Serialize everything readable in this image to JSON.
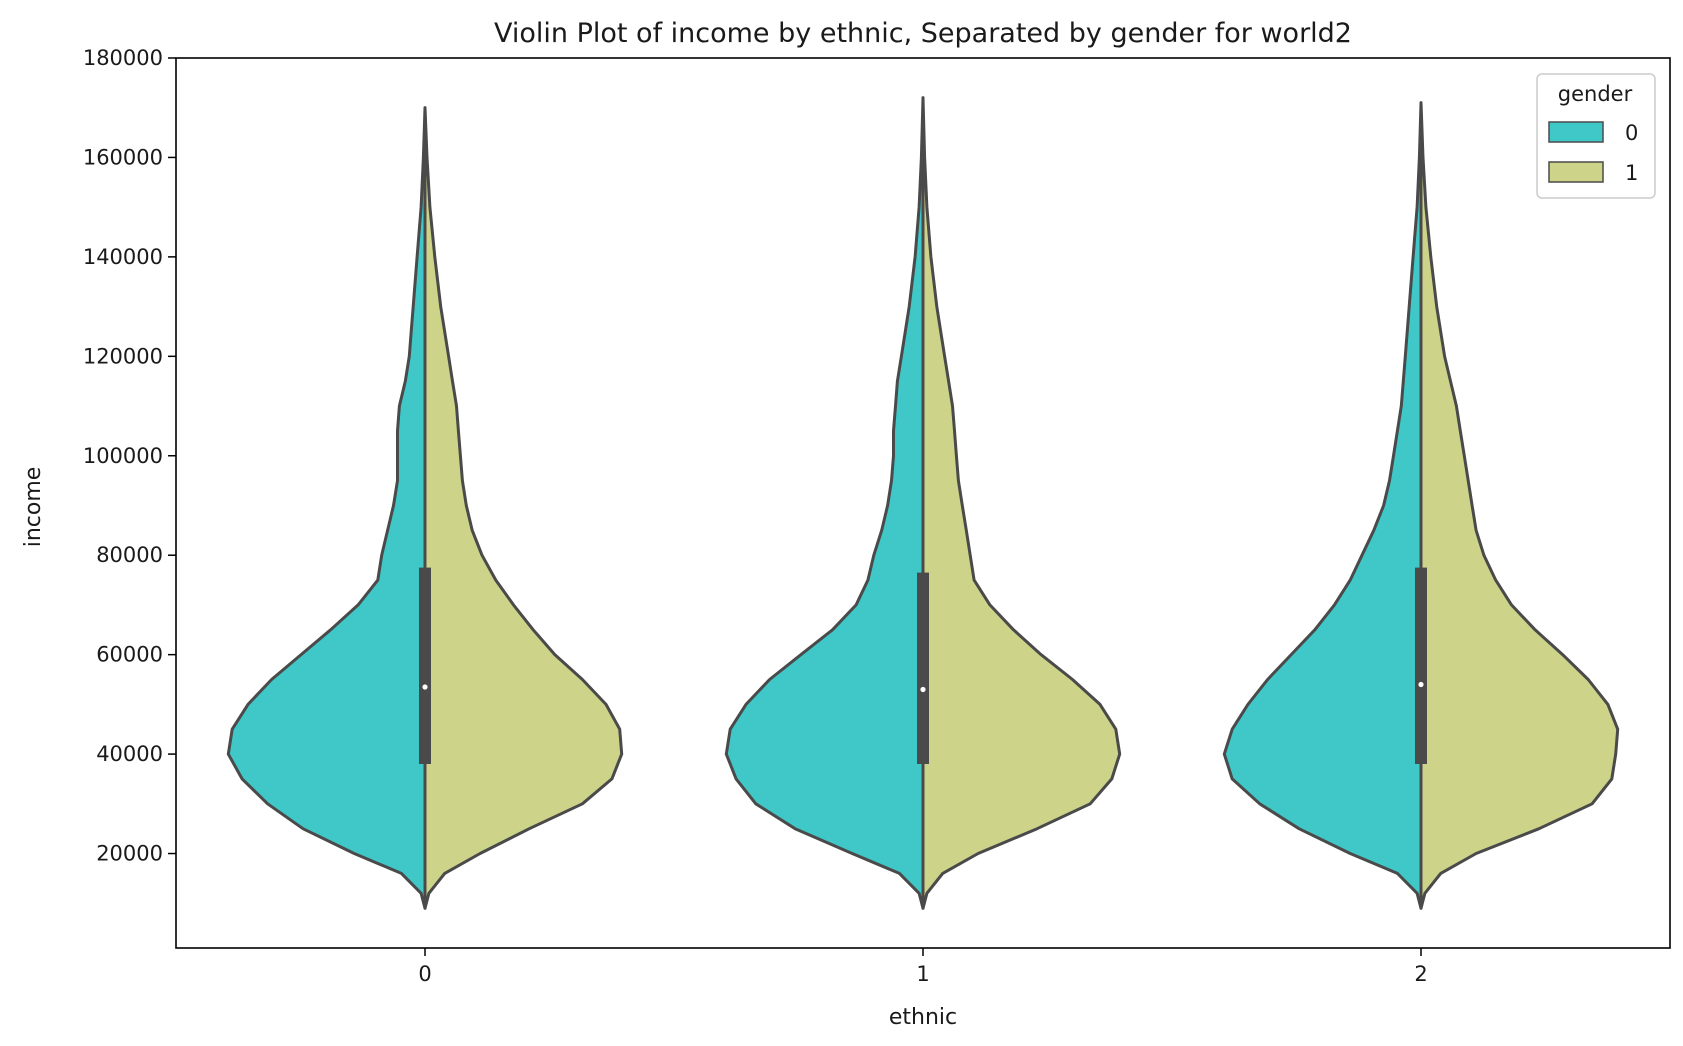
{
  "chart_data": {
    "type": "violin",
    "split": true,
    "title": "Violin Plot of income by ethnic, Separated by gender for world2",
    "xlabel": "ethnic",
    "ylabel": "income",
    "categories": [
      "0",
      "1",
      "2"
    ],
    "ylim": [
      1000,
      180000
    ],
    "yticks": [
      20000,
      40000,
      60000,
      80000,
      100000,
      120000,
      140000,
      160000,
      180000
    ],
    "ytick_labels": [
      "20000",
      "40000",
      "60000",
      "80000",
      "100000",
      "120000",
      "140000",
      "160000",
      "180000"
    ],
    "grid": false,
    "legend": {
      "title": "gender",
      "position": "top-right"
    },
    "series": [
      {
        "name": "0",
        "color": "#40c8c8",
        "side": "left",
        "profiles": [
          [
            [
              9000,
              0
            ],
            [
              12000,
              0.02
            ],
            [
              16000,
              0.12
            ],
            [
              20000,
              0.36
            ],
            [
              25000,
              0.62
            ],
            [
              30000,
              0.8
            ],
            [
              35000,
              0.93
            ],
            [
              40000,
              1.0
            ],
            [
              45000,
              0.98
            ],
            [
              50000,
              0.9
            ],
            [
              55000,
              0.78
            ],
            [
              60000,
              0.63
            ],
            [
              65000,
              0.48
            ],
            [
              70000,
              0.34
            ],
            [
              75000,
              0.24
            ],
            [
              80000,
              0.22
            ],
            [
              85000,
              0.19
            ],
            [
              90000,
              0.16
            ],
            [
              95000,
              0.14
            ],
            [
              100000,
              0.14
            ],
            [
              105000,
              0.14
            ],
            [
              110000,
              0.13
            ],
            [
              115000,
              0.1
            ],
            [
              120000,
              0.08
            ],
            [
              125000,
              0.07
            ],
            [
              130000,
              0.06
            ],
            [
              140000,
              0.04
            ],
            [
              150000,
              0.02
            ],
            [
              160000,
              0.008
            ],
            [
              170000,
              0
            ]
          ],
          [
            [
              9000,
              0
            ],
            [
              12000,
              0.02
            ],
            [
              16000,
              0.12
            ],
            [
              20000,
              0.36
            ],
            [
              25000,
              0.65
            ],
            [
              30000,
              0.85
            ],
            [
              35000,
              0.95
            ],
            [
              40000,
              1.0
            ],
            [
              45000,
              0.98
            ],
            [
              50000,
              0.9
            ],
            [
              55000,
              0.78
            ],
            [
              60000,
              0.62
            ],
            [
              65000,
              0.46
            ],
            [
              70000,
              0.34
            ],
            [
              75000,
              0.28
            ],
            [
              80000,
              0.25
            ],
            [
              85000,
              0.21
            ],
            [
              90000,
              0.18
            ],
            [
              95000,
              0.16
            ],
            [
              100000,
              0.15
            ],
            [
              105000,
              0.15
            ],
            [
              110000,
              0.14
            ],
            [
              115000,
              0.13
            ],
            [
              120000,
              0.11
            ],
            [
              125000,
              0.09
            ],
            [
              130000,
              0.07
            ],
            [
              140000,
              0.04
            ],
            [
              150000,
              0.02
            ],
            [
              160000,
              0.008
            ],
            [
              172000,
              0
            ]
          ],
          [
            [
              9000,
              0
            ],
            [
              12000,
              0.02
            ],
            [
              16000,
              0.12
            ],
            [
              20000,
              0.36
            ],
            [
              25000,
              0.62
            ],
            [
              30000,
              0.82
            ],
            [
              35000,
              0.96
            ],
            [
              40000,
              1.0
            ],
            [
              45000,
              0.96
            ],
            [
              50000,
              0.88
            ],
            [
              55000,
              0.78
            ],
            [
              60000,
              0.66
            ],
            [
              65000,
              0.54
            ],
            [
              70000,
              0.44
            ],
            [
              75000,
              0.36
            ],
            [
              80000,
              0.3
            ],
            [
              85000,
              0.24
            ],
            [
              90000,
              0.19
            ],
            [
              95000,
              0.16
            ],
            [
              100000,
              0.14
            ],
            [
              110000,
              0.1
            ],
            [
              120000,
              0.08
            ],
            [
              130000,
              0.06
            ],
            [
              140000,
              0.04
            ],
            [
              150000,
              0.02
            ],
            [
              160000,
              0.008
            ],
            [
              171000,
              0
            ]
          ]
        ]
      },
      {
        "name": "1",
        "color": "#cdd48a",
        "side": "right",
        "profiles": [
          [
            [
              9000,
              0
            ],
            [
              12000,
              0.02
            ],
            [
              16000,
              0.1
            ],
            [
              20000,
              0.28
            ],
            [
              25000,
              0.53
            ],
            [
              30000,
              0.8
            ],
            [
              35000,
              0.95
            ],
            [
              40000,
              1.0
            ],
            [
              45000,
              0.99
            ],
            [
              50000,
              0.92
            ],
            [
              55000,
              0.8
            ],
            [
              60000,
              0.66
            ],
            [
              65000,
              0.55
            ],
            [
              70000,
              0.45
            ],
            [
              75000,
              0.36
            ],
            [
              80000,
              0.29
            ],
            [
              85000,
              0.24
            ],
            [
              90000,
              0.21
            ],
            [
              95000,
              0.19
            ],
            [
              100000,
              0.18
            ],
            [
              105000,
              0.17
            ],
            [
              110000,
              0.16
            ],
            [
              115000,
              0.14
            ],
            [
              120000,
              0.12
            ],
            [
              130000,
              0.08
            ],
            [
              140000,
              0.05
            ],
            [
              150000,
              0.025
            ],
            [
              160000,
              0.01
            ],
            [
              170000,
              0
            ]
          ],
          [
            [
              9000,
              0
            ],
            [
              12000,
              0.02
            ],
            [
              16000,
              0.1
            ],
            [
              20000,
              0.28
            ],
            [
              25000,
              0.58
            ],
            [
              30000,
              0.85
            ],
            [
              35000,
              0.96
            ],
            [
              40000,
              1.0
            ],
            [
              45000,
              0.98
            ],
            [
              50000,
              0.9
            ],
            [
              55000,
              0.76
            ],
            [
              60000,
              0.6
            ],
            [
              65000,
              0.46
            ],
            [
              70000,
              0.34
            ],
            [
              75000,
              0.26
            ],
            [
              80000,
              0.24
            ],
            [
              85000,
              0.22
            ],
            [
              90000,
              0.2
            ],
            [
              95000,
              0.18
            ],
            [
              100000,
              0.17
            ],
            [
              105000,
              0.16
            ],
            [
              110000,
              0.15
            ],
            [
              115000,
              0.13
            ],
            [
              120000,
              0.11
            ],
            [
              130000,
              0.07
            ],
            [
              140000,
              0.04
            ],
            [
              150000,
              0.02
            ],
            [
              160000,
              0.008
            ],
            [
              172000,
              0
            ]
          ],
          [
            [
              9000,
              0
            ],
            [
              12000,
              0.02
            ],
            [
              16000,
              0.1
            ],
            [
              20000,
              0.28
            ],
            [
              25000,
              0.6
            ],
            [
              30000,
              0.87
            ],
            [
              35000,
              0.97
            ],
            [
              40000,
              0.99
            ],
            [
              45000,
              1.0
            ],
            [
              50000,
              0.95
            ],
            [
              55000,
              0.85
            ],
            [
              60000,
              0.72
            ],
            [
              65000,
              0.58
            ],
            [
              70000,
              0.46
            ],
            [
              75000,
              0.38
            ],
            [
              80000,
              0.32
            ],
            [
              85000,
              0.28
            ],
            [
              90000,
              0.26
            ],
            [
              95000,
              0.24
            ],
            [
              100000,
              0.22
            ],
            [
              105000,
              0.2
            ],
            [
              110000,
              0.18
            ],
            [
              115000,
              0.15
            ],
            [
              120000,
              0.12
            ],
            [
              130000,
              0.08
            ],
            [
              140000,
              0.05
            ],
            [
              150000,
              0.025
            ],
            [
              160000,
              0.01
            ],
            [
              171000,
              0
            ]
          ]
        ]
      }
    ],
    "box_summary": [
      {
        "category": "0",
        "q1": 38000,
        "median": 53500,
        "q3": 77500
      },
      {
        "category": "1",
        "q1": 38000,
        "median": 53000,
        "q3": 76500
      },
      {
        "category": "2",
        "q1": 38000,
        "median": 54000,
        "q3": 77500
      }
    ]
  }
}
